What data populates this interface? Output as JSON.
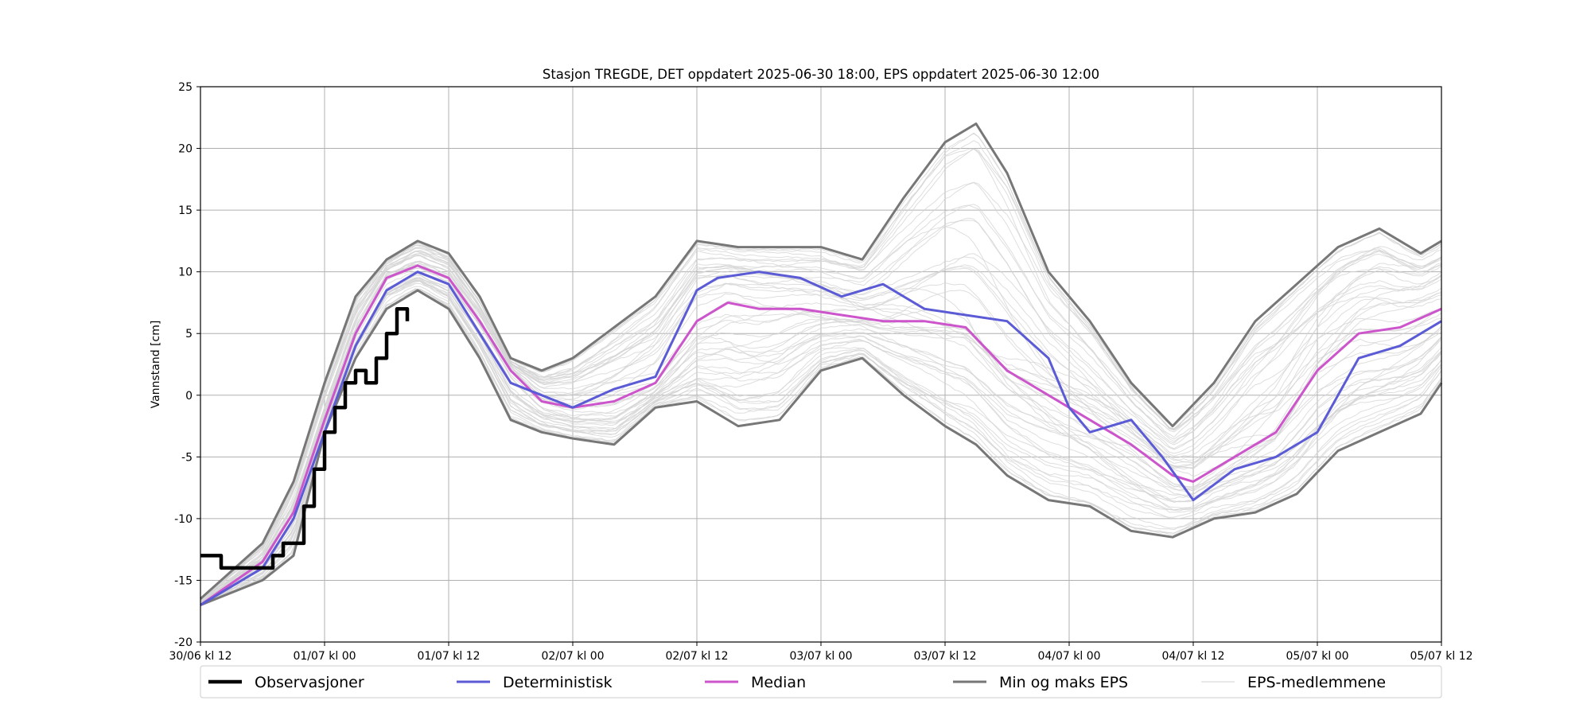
{
  "chart_data": {
    "type": "line",
    "title": "Stasjon TREGDE, DET oppdatert 2025-06-30 18:00, EPS oppdatert 2025-06-30 12:00",
    "xlabel": "",
    "ylabel": "Vannstand [cm]",
    "xlim": [
      "2025-06-30 12:00",
      "2025-07-05 12:00"
    ],
    "ylim": [
      -20,
      25
    ],
    "grid": true,
    "legend_position": "bottom",
    "x_tick_labels": [
      "30/06 kl 12",
      "01/07 kl 00",
      "01/07 kl 12",
      "02/07 kl 00",
      "02/07 kl 12",
      "03/07 kl 00",
      "03/07 kl 12",
      "04/07 kl 00",
      "04/07 kl 12",
      "05/07 kl 00",
      "05/07 kl 12"
    ],
    "y_ticks": [
      -20,
      -15,
      -10,
      -5,
      0,
      5,
      10,
      15,
      20,
      25
    ],
    "series": [
      {
        "name": "Observasjoner",
        "color": "#000000",
        "x": [
          "2025-06-30 12:00",
          "2025-06-30 13:00",
          "2025-06-30 14:00",
          "2025-06-30 16:00",
          "2025-06-30 17:00",
          "2025-06-30 18:00",
          "2025-06-30 19:00",
          "2025-06-30 20:00",
          "2025-06-30 21:00",
          "2025-06-30 22:00",
          "2025-06-30 23:00",
          "2025-07-01 00:00",
          "2025-07-01 01:00",
          "2025-07-01 02:00",
          "2025-07-01 03:00",
          "2025-07-01 04:00",
          "2025-07-01 05:00",
          "2025-07-01 06:00",
          "2025-07-01 07:00",
          "2025-07-01 08:00"
        ],
        "y": [
          -13,
          -13,
          -14,
          -14,
          -14,
          -14,
          -13,
          -12,
          -12,
          -9,
          -6,
          -3,
          -1,
          1,
          2,
          1,
          3,
          5,
          7,
          6
        ]
      },
      {
        "name": "Deterministisk",
        "color": "#5b5bd6",
        "x": [
          "2025-06-30 12:00",
          "2025-06-30 18:00",
          "2025-06-30 21:00",
          "2025-07-01 00:00",
          "2025-07-01 03:00",
          "2025-07-01 06:00",
          "2025-07-01 09:00",
          "2025-07-01 12:00",
          "2025-07-01 15:00",
          "2025-07-01 18:00",
          "2025-07-01 21:00",
          "2025-07-02 00:00",
          "2025-07-02 04:00",
          "2025-07-02 08:00",
          "2025-07-02 12:00",
          "2025-07-02 14:00",
          "2025-07-02 18:00",
          "2025-07-02 22:00",
          "2025-07-03 02:00",
          "2025-07-03 06:00",
          "2025-07-03 10:00",
          "2025-07-03 14:00",
          "2025-07-03 18:00",
          "2025-07-03 22:00",
          "2025-07-04 00:00",
          "2025-07-04 02:00",
          "2025-07-04 06:00",
          "2025-07-04 09:00",
          "2025-07-04 12:00",
          "2025-07-04 16:00",
          "2025-07-04 20:00",
          "2025-07-05 00:00",
          "2025-07-05 04:00",
          "2025-07-05 08:00",
          "2025-07-05 12:00"
        ],
        "y": [
          -17,
          -14,
          -10,
          -3,
          4,
          8.5,
          10,
          9,
          5,
          1,
          0,
          -1,
          0.5,
          1.5,
          8.5,
          9.5,
          10,
          9.5,
          8,
          9,
          7,
          6.5,
          6,
          3,
          -1,
          -3,
          -2,
          -5,
          -8.5,
          -6,
          -5,
          -3,
          3,
          4,
          6
        ]
      },
      {
        "name": "Median",
        "color": "#cc55cc",
        "x": [
          "2025-06-30 12:00",
          "2025-06-30 18:00",
          "2025-06-30 21:00",
          "2025-07-01 00:00",
          "2025-07-01 03:00",
          "2025-07-01 06:00",
          "2025-07-01 09:00",
          "2025-07-01 12:00",
          "2025-07-01 15:00",
          "2025-07-01 18:00",
          "2025-07-01 21:00",
          "2025-07-02 00:00",
          "2025-07-02 04:00",
          "2025-07-02 08:00",
          "2025-07-02 12:00",
          "2025-07-02 15:00",
          "2025-07-02 18:00",
          "2025-07-02 22:00",
          "2025-07-03 02:00",
          "2025-07-03 06:00",
          "2025-07-03 10:00",
          "2025-07-03 14:00",
          "2025-07-03 18:00",
          "2025-07-03 22:00",
          "2025-07-04 02:00",
          "2025-07-04 06:00",
          "2025-07-04 10:00",
          "2025-07-04 12:00",
          "2025-07-04 16:00",
          "2025-07-04 20:00",
          "2025-07-05 00:00",
          "2025-07-05 04:00",
          "2025-07-05 08:00",
          "2025-07-05 12:00"
        ],
        "y": [
          -17,
          -13.5,
          -9.5,
          -2,
          5,
          9.5,
          10.5,
          9.5,
          6,
          2,
          -0.5,
          -1,
          -0.5,
          1,
          6,
          7.5,
          7,
          7,
          6.5,
          6,
          6,
          5.5,
          2,
          0,
          -2,
          -4,
          -6.5,
          -7,
          -5,
          -3,
          2,
          5,
          5.5,
          7
        ]
      },
      {
        "name": "Min og maks EPS",
        "color": "#777777",
        "x": [
          "2025-06-30 12:00",
          "2025-06-30 18:00",
          "2025-06-30 21:00",
          "2025-07-01 00:00",
          "2025-07-01 03:00",
          "2025-07-01 06:00",
          "2025-07-01 09:00",
          "2025-07-01 12:00",
          "2025-07-01 15:00",
          "2025-07-01 18:00",
          "2025-07-01 21:00",
          "2025-07-02 00:00",
          "2025-07-02 04:00",
          "2025-07-02 08:00",
          "2025-07-02 12:00",
          "2025-07-02 16:00",
          "2025-07-02 20:00",
          "2025-07-03 00:00",
          "2025-07-03 04:00",
          "2025-07-03 08:00",
          "2025-07-03 12:00",
          "2025-07-03 15:00",
          "2025-07-03 18:00",
          "2025-07-03 22:00",
          "2025-07-04 02:00",
          "2025-07-04 06:00",
          "2025-07-04 10:00",
          "2025-07-04 14:00",
          "2025-07-04 18:00",
          "2025-07-04 22:00",
          "2025-07-05 02:00",
          "2025-07-05 06:00",
          "2025-07-05 10:00",
          "2025-07-05 12:00"
        ],
        "y_max": [
          -16.5,
          -12,
          -7,
          1,
          8,
          11,
          12.5,
          11.5,
          8,
          3,
          2,
          3,
          5.5,
          8,
          12.5,
          12,
          12,
          12,
          11,
          16,
          20.5,
          22,
          18,
          10,
          6,
          1,
          -2.5,
          1,
          6,
          9,
          12,
          13.5,
          11.5,
          12.5
        ],
        "y_min": [
          -17,
          -15,
          -13,
          -3,
          3,
          7,
          8.5,
          7,
          3,
          -2,
          -3,
          -3.5,
          -4,
          -1,
          -0.5,
          -2.5,
          -2,
          2,
          3,
          0,
          -2.5,
          -4,
          -6.5,
          -8.5,
          -9,
          -11,
          -11.5,
          -10,
          -9.5,
          -8,
          -4.5,
          -3,
          -1.5,
          1
        ]
      },
      {
        "name": "EPS-medlemmene",
        "color": "#d3d3d3",
        "members": 50
      }
    ]
  },
  "legend": {
    "items": [
      {
        "label": "Observasjoner",
        "color": "#000000"
      },
      {
        "label": "Deterministisk",
        "color": "#5b5bd6"
      },
      {
        "label": "Median",
        "color": "#cc55cc"
      },
      {
        "label": "Min og maks EPS",
        "color": "#777777"
      },
      {
        "label": "EPS-medlemmene",
        "color": "#d3d3d3"
      }
    ]
  }
}
